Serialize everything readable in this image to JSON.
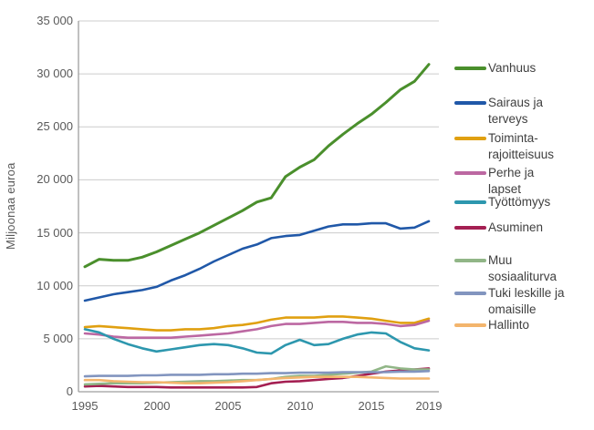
{
  "chart_data": {
    "type": "line",
    "title": "",
    "xlabel": "",
    "ylabel": "Miljoonaa euroa",
    "ylim": [
      0,
      35000
    ],
    "grid": true,
    "legend_position": "right",
    "x": [
      1995,
      1996,
      1997,
      1998,
      1999,
      2000,
      2001,
      2002,
      2003,
      2004,
      2005,
      2006,
      2007,
      2008,
      2009,
      2010,
      2011,
      2012,
      2013,
      2014,
      2015,
      2016,
      2017,
      2018,
      2019
    ],
    "x_tick_labels": [
      "1995",
      "2000",
      "2005",
      "2010",
      "2015",
      "2019"
    ],
    "x_tick_years": [
      1995,
      2000,
      2005,
      2010,
      2015,
      2019
    ],
    "y_ticks": [
      35000,
      30000,
      25000,
      20000,
      15000,
      10000,
      5000,
      0
    ],
    "y_tick_labels": [
      "35 000",
      "30 000",
      "25 000",
      "20 000",
      "15 000",
      "10 000",
      "5 000",
      "0"
    ],
    "series": [
      {
        "name": "Vanhuus",
        "color": "#4A8F2C",
        "values": [
          11800,
          12500,
          12400,
          12400,
          12700,
          13200,
          13800,
          14400,
          15000,
          15700,
          16400,
          17100,
          17900,
          18300,
          20300,
          21200,
          21900,
          23200,
          24300,
          25300,
          26200,
          27300,
          28500,
          29300,
          30900
        ]
      },
      {
        "name": "Sairaus ja terveys",
        "color": "#2058A8",
        "values": [
          8600,
          8900,
          9200,
          9400,
          9600,
          9900,
          10500,
          11000,
          11600,
          12300,
          12900,
          13500,
          13900,
          14500,
          14700,
          14800,
          15200,
          15600,
          15800,
          15800,
          15900,
          15900,
          15400,
          15500,
          16100
        ]
      },
      {
        "name": "Toiminta-rajoitteisuus",
        "color": "#E0A011",
        "values": [
          6100,
          6200,
          6100,
          6000,
          5900,
          5800,
          5800,
          5900,
          5900,
          6000,
          6200,
          6300,
          6500,
          6800,
          7000,
          7000,
          7000,
          7100,
          7100,
          7000,
          6900,
          6700,
          6500,
          6500,
          6900
        ]
      },
      {
        "name": "Perhe ja lapset",
        "color": "#BC68A2",
        "values": [
          5500,
          5400,
          5200,
          5100,
          5100,
          5100,
          5100,
          5200,
          5300,
          5400,
          5500,
          5700,
          5900,
          6200,
          6400,
          6400,
          6500,
          6600,
          6600,
          6500,
          6500,
          6400,
          6200,
          6300,
          6700
        ]
      },
      {
        "name": "Työttömyys",
        "color": "#2D97AE",
        "values": [
          5900,
          5600,
          5000,
          4500,
          4100,
          3800,
          4000,
          4200,
          4400,
          4500,
          4400,
          4100,
          3700,
          3600,
          4400,
          4900,
          4400,
          4500,
          5000,
          5400,
          5600,
          5500,
          4700,
          4100,
          3900
        ]
      },
      {
        "name": "Asuminen",
        "color": "#A41F52",
        "values": [
          500,
          550,
          500,
          450,
          450,
          450,
          400,
          400,
          400,
          400,
          400,
          400,
          450,
          800,
          950,
          1000,
          1100,
          1200,
          1300,
          1500,
          1700,
          1900,
          2000,
          2100,
          2200
        ]
      },
      {
        "name": "Muu sosiaaliturva",
        "color": "#91B687",
        "values": [
          700,
          750,
          800,
          800,
          800,
          850,
          900,
          950,
          1000,
          1000,
          1050,
          1100,
          1100,
          1200,
          1400,
          1500,
          1500,
          1600,
          1700,
          1800,
          1900,
          2400,
          2200,
          2100,
          2100
        ]
      },
      {
        "name": "Tuki leskille ja omaisille",
        "color": "#8295BF",
        "values": [
          1450,
          1500,
          1500,
          1500,
          1550,
          1550,
          1600,
          1600,
          1600,
          1650,
          1650,
          1700,
          1700,
          1750,
          1750,
          1800,
          1800,
          1800,
          1850,
          1850,
          1850,
          1850,
          1900,
          1900,
          1950
        ]
      },
      {
        "name": "Hallinto",
        "color": "#F3B56D",
        "values": [
          1100,
          1100,
          1000,
          950,
          900,
          900,
          850,
          800,
          800,
          850,
          900,
          1000,
          1100,
          1200,
          1300,
          1350,
          1400,
          1400,
          1400,
          1400,
          1350,
          1300,
          1250,
          1250,
          1250
        ]
      }
    ]
  }
}
